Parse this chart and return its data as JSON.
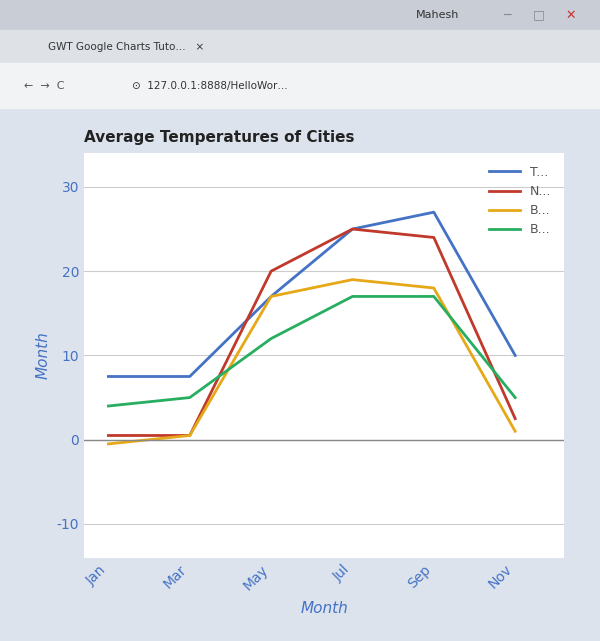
{
  "title": "Average Temperatures of Cities",
  "xlabel": "Month",
  "ylabel": "Month",
  "x_tick_labels": [
    "Jan",
    "Mar",
    "May",
    "Jul",
    "Sep",
    "Nov"
  ],
  "x_positions": [
    0,
    1,
    2,
    3,
    4,
    5
  ],
  "y_ticks": [
    -10,
    0,
    10,
    20,
    30
  ],
  "ylim": [
    -14,
    34
  ],
  "xlim": [
    -0.3,
    5.6
  ],
  "series": [
    {
      "label": "T...",
      "color": "#4472C4",
      "data": [
        7.5,
        7.5,
        17,
        25,
        27,
        10
      ]
    },
    {
      "label": "N...",
      "color": "#C0392B",
      "data": [
        0.5,
        0.5,
        20,
        25,
        24,
        2.5
      ]
    },
    {
      "label": "B...",
      "color": "#E6A817",
      "data": [
        -0.5,
        0.5,
        17,
        19,
        18,
        1
      ]
    },
    {
      "label": "B...",
      "color": "#27AE60",
      "data": [
        4,
        5,
        12,
        17,
        17,
        5
      ]
    }
  ],
  "bg_color": "#ffffff",
  "page_bg": "#dde3ed",
  "chrome_top_bar": "#dee1e6",
  "chrome_tab_bar": "#c8cbd0",
  "chrome_nav_bar": "#f1f3f4",
  "grid_color": "#cccccc",
  "axis_label_color": "#4472C4",
  "tick_label_color": "#4472C4",
  "title_color": "#222222",
  "zero_line_color": "#888888",
  "line_width": 2.0,
  "fig_width": 6.0,
  "fig_height": 6.41,
  "dpi": 100
}
